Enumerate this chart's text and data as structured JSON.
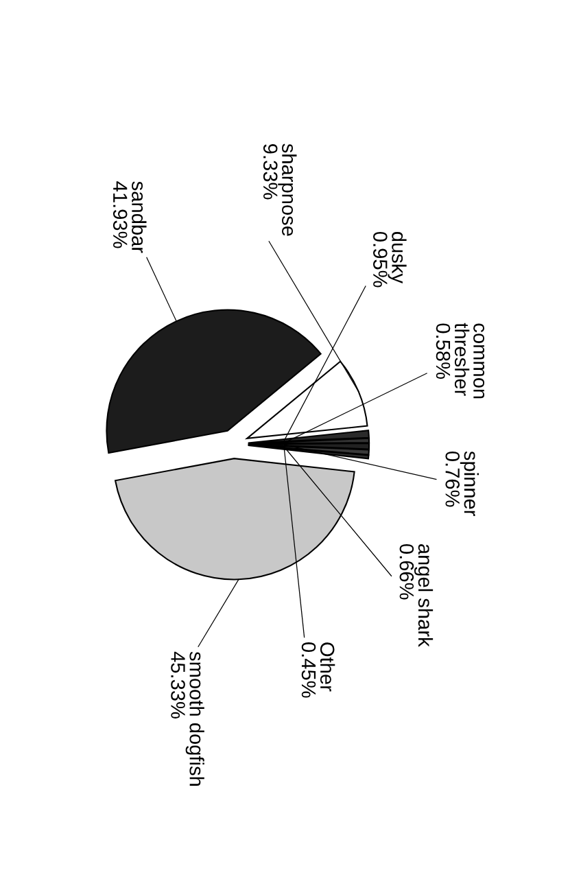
{
  "chart_data": {
    "type": "pie",
    "categories": [
      "sandbar",
      "sharpnose",
      "dusky",
      "common thresher",
      "spinner",
      "angel shark",
      "Other",
      "smooth dogfish"
    ],
    "values": [
      41.93,
      9.33,
      0.95,
      0.58,
      0.76,
      0.66,
      0.45,
      45.33
    ],
    "value_labels": [
      "41.93%",
      "9.33%",
      "0.95%",
      "0.58%",
      "0.76%",
      "0.66%",
      "0.45%",
      "45.33%"
    ],
    "colors": [
      "#1c1c1c",
      "#ffffff",
      "#2a2a2a",
      "#333333",
      "#222222",
      "#3a3a3a",
      "#2e2e2e",
      "#c8c8c8"
    ]
  }
}
